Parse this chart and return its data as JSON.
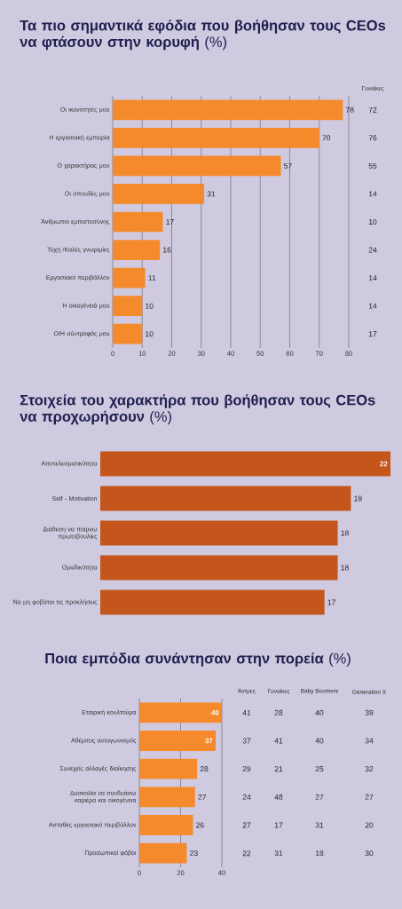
{
  "chart_data": [
    {
      "type": "bar",
      "orientation": "horizontal",
      "title": "**Τα πιο σημαντικά εφόδια που βοήθησαν τους CEOs να φτάσουν στην κορυφή** (%)",
      "categories": [
        "Οι ικανότητές μου",
        "Η εργασιακή εμπειρία",
        "Ο χαρακτήρας μου",
        "Οι σπουδές μου",
        "Άνθρωποι εμπιστοσύνης",
        "Τύχη /Καλές γνωριμίες",
        "Εργασιακό περιβάλλον",
        "Η οικογένειά μου",
        "Ο/Η σύντροφός μου"
      ],
      "values": [
        78,
        70,
        57,
        31,
        17,
        16,
        11,
        10,
        10
      ],
      "color": "#f58a2c",
      "xlim": [
        0,
        80
      ],
      "xticks": [
        0,
        10,
        20,
        30,
        40,
        50,
        60,
        70,
        80
      ],
      "grid": "x",
      "data_labels": true,
      "annotations": [
        "Γυναίκες",
        "72",
        "76",
        "55",
        "14",
        "10",
        "24",
        "14",
        "14",
        "17"
      ]
    },
    {
      "type": "bar",
      "orientation": "horizontal",
      "title": "**Στοιχεία του χαρακτήρα που βοήθησαν τους CEOs να προχωρήσουν** (%)",
      "categories": [
        "Αποτελεσματικότητα",
        "Self - Motivation",
        "Διάθεση να παίρνω πρωτοβουλίες",
        "Ομαδικότητα",
        "Να μη φοβάται τις προκλήσεις"
      ],
      "values": [
        22,
        19,
        18,
        18,
        17
      ],
      "color": "#c4561c",
      "data_labels": true,
      "tick_labels": "y"
    },
    {
      "type": "bar",
      "orientation": "horizontal",
      "title": "**Ποια εμπόδια συνάντησαν στην πορεία** (%)",
      "categories": [
        "Εταιρική κουλτούρα",
        "Αθέμιτος ανταγωνισμός",
        "Συνεχείς αλλαγές διοίκησης",
        "Δυσκολία να συνδυάσω καριέρα και οικογένεια",
        "Ασταθές εργασιακό περιβάλλον",
        "Προσωπικοί φόβοι"
      ],
      "values": [
        40,
        37,
        28,
        27,
        26,
        23
      ],
      "color": "#f58a2c",
      "xlim": [
        0,
        40
      ],
      "xticks": [
        0,
        20,
        40
      ],
      "grid": "x",
      "data_labels": true,
      "annotations": [
        "Άντρες",
        "Γυναίκες",
        "Baby Boomers",
        "Generation X",
        "41",
        "28",
        "40",
        "39",
        "37",
        "41",
        "40",
        "34",
        "29",
        "21",
        "25",
        "32",
        "24",
        "48",
        "27",
        "27",
        "27",
        "17",
        "31",
        "20",
        "22",
        "31",
        "18",
        "30"
      ]
    }
  ]
}
